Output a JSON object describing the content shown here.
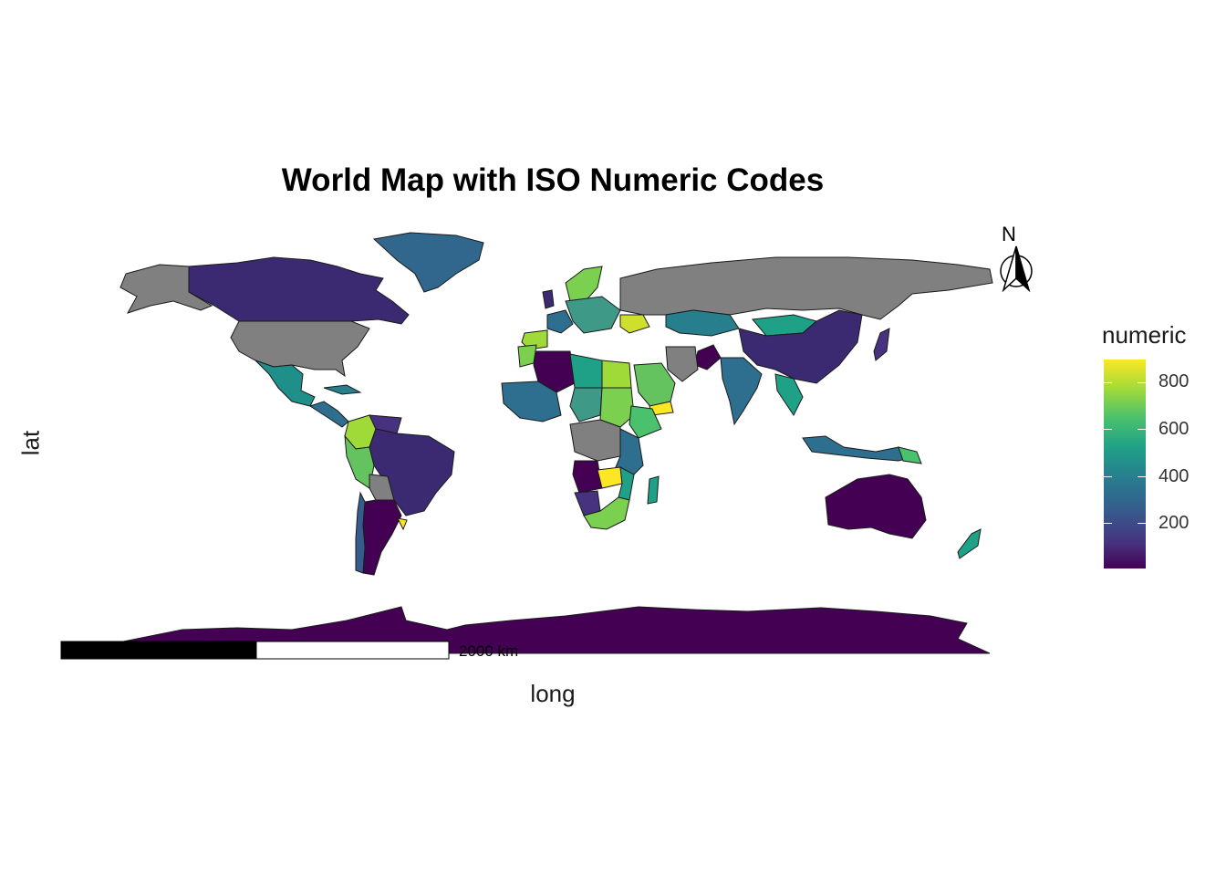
{
  "title": "World Map with ISO Numeric Codes",
  "xlabel": "long",
  "ylabel": "lat",
  "legend": {
    "title": "numeric",
    "ticks": [
      "800",
      "600",
      "400",
      "200"
    ],
    "colors": [
      "#440154",
      "#46327e",
      "#365c8d",
      "#277f8e",
      "#1fa187",
      "#4ac16d",
      "#a0da39",
      "#fde725"
    ]
  },
  "north_arrow": {
    "label": "N"
  },
  "scale_bar": {
    "label": "2000 km"
  },
  "colors": {
    "missing": "#808080",
    "border": "#1a1a1a"
  }
}
